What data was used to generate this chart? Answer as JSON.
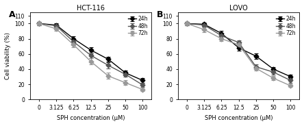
{
  "panel_A": {
    "title": "HCT-116",
    "label": "A",
    "x": [
      0,
      3.125,
      6.25,
      12.5,
      25,
      50,
      100
    ],
    "y_24h": [
      100,
      98,
      80,
      65,
      53,
      35,
      25
    ],
    "y_48h": [
      100,
      97,
      76,
      58,
      45,
      33,
      19
    ],
    "y_72h": [
      100,
      93,
      72,
      50,
      31,
      22,
      13
    ],
    "err_24h": [
      2,
      2,
      3,
      4,
      3,
      3,
      3
    ],
    "err_48h": [
      2,
      2,
      3,
      4,
      4,
      3,
      3
    ],
    "err_72h": [
      2,
      3,
      3,
      4,
      4,
      3,
      2
    ]
  },
  "panel_B": {
    "title": "LOVO",
    "label": "B",
    "x": [
      0,
      3.125,
      6.25,
      12.5,
      25,
      50,
      100
    ],
    "y_24h": [
      100,
      99,
      87,
      68,
      57,
      40,
      30
    ],
    "y_48h": [
      100,
      98,
      84,
      75,
      43,
      36,
      25
    ],
    "y_72h": [
      100,
      92,
      80,
      72,
      41,
      28,
      18
    ],
    "err_24h": [
      2,
      2,
      3,
      4,
      4,
      3,
      3
    ],
    "err_48h": [
      2,
      2,
      3,
      3,
      3,
      3,
      3
    ],
    "err_72h": [
      2,
      3,
      3,
      3,
      3,
      3,
      2
    ]
  },
  "color_24h": "#000000",
  "color_48h": "#555555",
  "color_72h": "#999999",
  "marker_24h": "D",
  "marker_48h": "D",
  "marker_72h": "D",
  "markersize": 3.5,
  "linewidth": 1.0,
  "xlabel": "SPH concentration (μM)",
  "ylabel": "Cell viability (%)",
  "ylim": [
    0,
    115
  ],
  "yticks": [
    0,
    20,
    40,
    60,
    80,
    100,
    110
  ],
  "xtick_labels": [
    "0",
    "3.125",
    "6.25",
    "12.5",
    "25",
    "50",
    "100"
  ],
  "legend_labels": [
    "24h",
    "48h",
    "72h"
  ],
  "background_color": "#ffffff",
  "capsize": 2,
  "elinewidth": 0.8
}
